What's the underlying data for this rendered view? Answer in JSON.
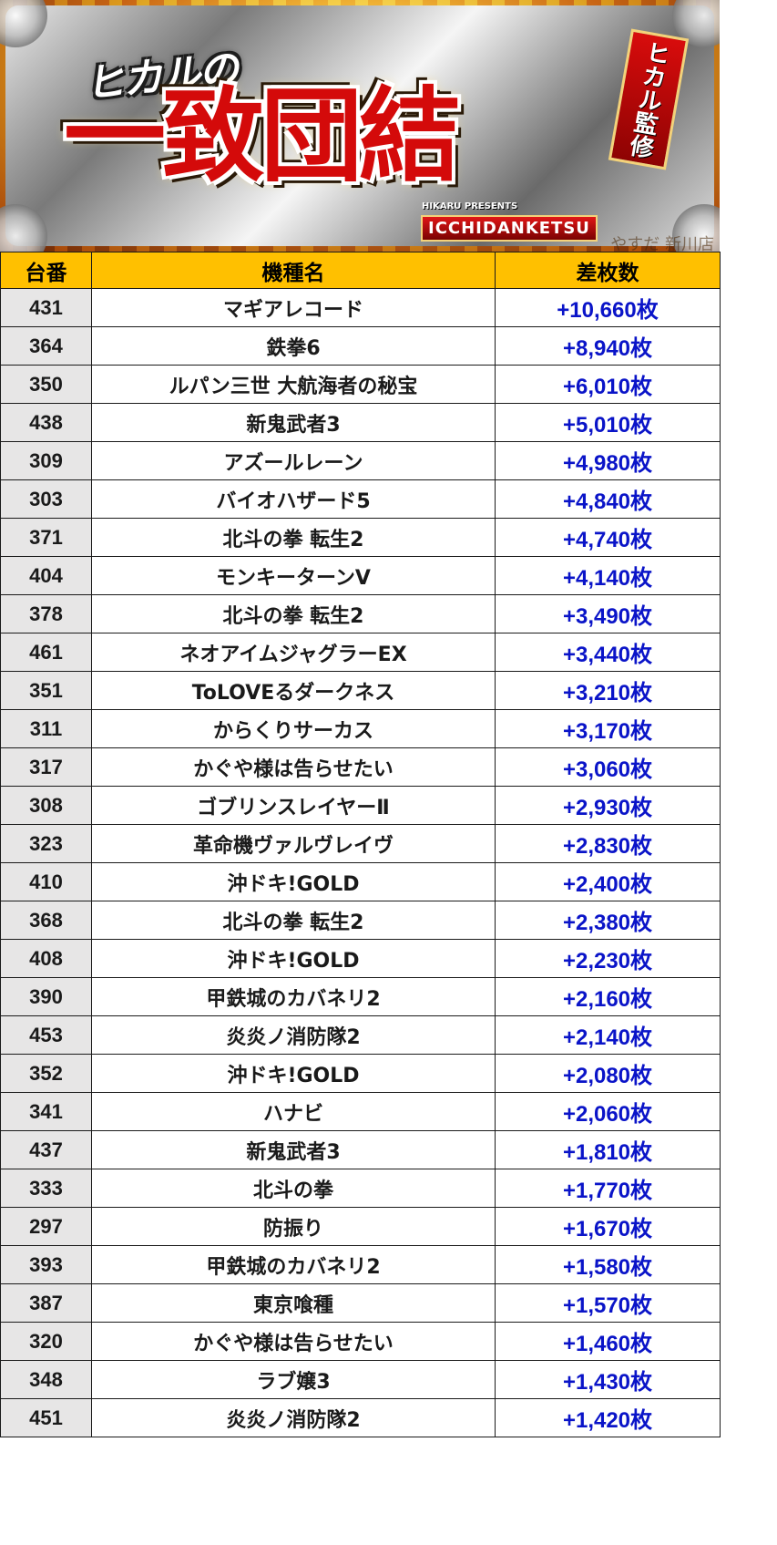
{
  "banner": {
    "kicker": "ヒカルの",
    "title": "一致団結",
    "badge": "ヒカル監修",
    "presents": "HIKARU PRESENTS",
    "subtitle": "ICCHIDANKETSU",
    "shop": "やすだ 新川店"
  },
  "table": {
    "headers": {
      "no": "台番",
      "name": "機種名",
      "diff": "差枚数"
    },
    "rows": [
      {
        "no": "431",
        "name": "マギアレコード",
        "diff": "+10,660枚"
      },
      {
        "no": "364",
        "name": "鉄拳6",
        "diff": "+8,940枚"
      },
      {
        "no": "350",
        "name": "ルパン三世 大航海者の秘宝",
        "diff": "+6,010枚"
      },
      {
        "no": "438",
        "name": "新鬼武者3",
        "diff": "+5,010枚"
      },
      {
        "no": "309",
        "name": "アズールレーン",
        "diff": "+4,980枚"
      },
      {
        "no": "303",
        "name": "バイオハザード5",
        "diff": "+4,840枚"
      },
      {
        "no": "371",
        "name": "北斗の拳 転生2",
        "diff": "+4,740枚"
      },
      {
        "no": "404",
        "name": "モンキーターンV",
        "diff": "+4,140枚"
      },
      {
        "no": "378",
        "name": "北斗の拳 転生2",
        "diff": "+3,490枚"
      },
      {
        "no": "461",
        "name": "ネオアイムジャグラーEX",
        "diff": "+3,440枚"
      },
      {
        "no": "351",
        "name": "ToLOVEるダークネス",
        "diff": "+3,210枚"
      },
      {
        "no": "311",
        "name": "からくりサーカス",
        "diff": "+3,170枚"
      },
      {
        "no": "317",
        "name": "かぐや様は告らせたい",
        "diff": "+3,060枚"
      },
      {
        "no": "308",
        "name": "ゴブリンスレイヤーⅡ",
        "diff": "+2,930枚"
      },
      {
        "no": "323",
        "name": "革命機ヴァルヴレイヴ",
        "diff": "+2,830枚"
      },
      {
        "no": "410",
        "name": "沖ドキ!GOLD",
        "diff": "+2,400枚"
      },
      {
        "no": "368",
        "name": "北斗の拳 転生2",
        "diff": "+2,380枚"
      },
      {
        "no": "408",
        "name": "沖ドキ!GOLD",
        "diff": "+2,230枚"
      },
      {
        "no": "390",
        "name": "甲鉄城のカバネリ2",
        "diff": "+2,160枚"
      },
      {
        "no": "453",
        "name": "炎炎ノ消防隊2",
        "diff": "+2,140枚"
      },
      {
        "no": "352",
        "name": "沖ドキ!GOLD",
        "diff": "+2,080枚"
      },
      {
        "no": "341",
        "name": "ハナビ",
        "diff": "+2,060枚"
      },
      {
        "no": "437",
        "name": "新鬼武者3",
        "diff": "+1,810枚"
      },
      {
        "no": "333",
        "name": "北斗の拳",
        "diff": "+1,770枚"
      },
      {
        "no": "297",
        "name": "防振り",
        "diff": "+1,670枚"
      },
      {
        "no": "393",
        "name": "甲鉄城のカバネリ2",
        "diff": "+1,580枚"
      },
      {
        "no": "387",
        "name": "東京喰種",
        "diff": "+1,570枚"
      },
      {
        "no": "320",
        "name": "かぐや様は告らせたい",
        "diff": "+1,460枚"
      },
      {
        "no": "348",
        "name": "ラブ嬢3",
        "diff": "+1,430枚"
      },
      {
        "no": "451",
        "name": "炎炎ノ消防隊2",
        "diff": "+1,420枚"
      }
    ]
  }
}
